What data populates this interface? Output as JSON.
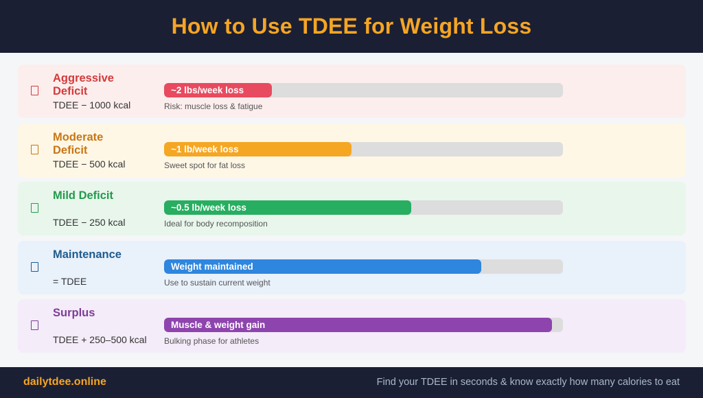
{
  "header": {
    "title": "How to Use TDEE for Weight Loss"
  },
  "rows": [
    {
      "title": "Aggressive Deficit",
      "formula": "TDEE − 1000 kcal",
      "bar_label": "~2 lbs/week loss",
      "bar_fraction": 0.27,
      "note": "Risk: muscle loss & fatigue",
      "icon": "warning-icon",
      "colors": {
        "background": "#fdeeee",
        "title": "#d33b3b",
        "bar": "#e84a5f"
      }
    },
    {
      "title": "Moderate Deficit",
      "formula": "TDEE − 500 kcal",
      "bar_label": "~1 lb/week loss",
      "bar_fraction": 0.47,
      "note": "Sweet spot for fat loss",
      "icon": "target-icon",
      "colors": {
        "background": "#fef7e6",
        "title": "#c87614",
        "bar": "#f5a623"
      }
    },
    {
      "title": "Mild Deficit",
      "formula": "TDEE − 250 kcal",
      "bar_label": "~0.5 lb/week loss",
      "bar_fraction": 0.62,
      "note": "Ideal for body recomposition",
      "icon": "leaf-icon",
      "colors": {
        "background": "#e8f6ec",
        "title": "#239a4d",
        "bar": "#27ae60"
      }
    },
    {
      "title": "Maintenance",
      "formula": "= TDEE",
      "bar_label": "Weight maintained",
      "bar_fraction": 0.795,
      "note": "Use to sustain current weight",
      "icon": "balance-icon",
      "colors": {
        "background": "#e9f1fb",
        "title": "#1f5c8e",
        "bar": "#2e86de"
      }
    },
    {
      "title": "Surplus",
      "formula": "TDEE + 250–500 kcal",
      "bar_label": "Muscle & weight gain",
      "bar_fraction": 0.972,
      "note": "Bulking phase for athletes",
      "icon": "muscle-icon",
      "colors": {
        "background": "#f4ecf8",
        "title": "#7d3c98",
        "bar": "#8e44ad"
      }
    }
  ],
  "footer": {
    "brand": "dailytdee.online",
    "tagline": "Find your TDEE in seconds & know exactly how many calories to eat"
  }
}
